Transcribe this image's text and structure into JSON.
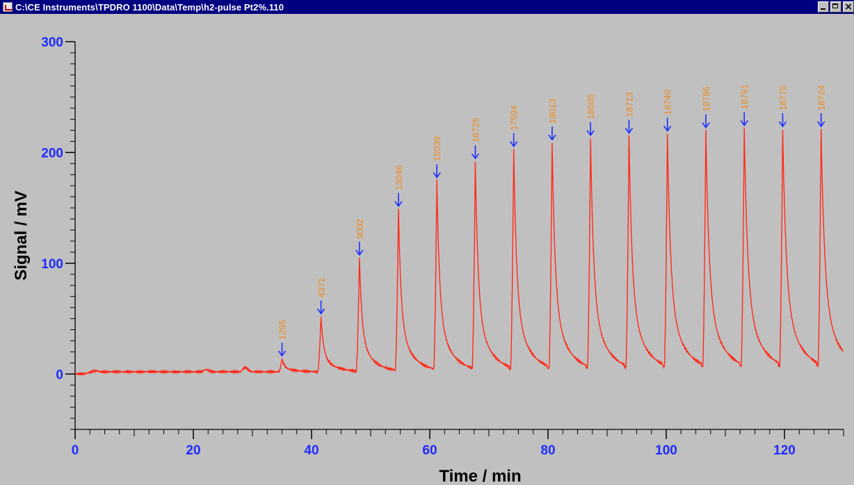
{
  "window": {
    "title": "C:\\CE Instruments\\TPDRO 1100\\Data\\Temp\\h2-pulse Pt2%.110",
    "icon": "instrument-chart-icon",
    "buttons": {
      "minimize": "minimize-icon",
      "maximize": "maximize-icon",
      "close_glyph": "×"
    }
  },
  "colors": {
    "background": "#c0c0c0",
    "titlebar": "#000080",
    "trace": "#ff2a1a",
    "arrow": "#1f2bff",
    "peak_label": "#f08a1c",
    "tick_label": "#1f2bff"
  },
  "chart_data": {
    "type": "line",
    "title": "",
    "xlabel": "Time / min",
    "ylabel": "Signal / mV",
    "xlim": [
      0,
      130
    ],
    "ylim": [
      -50,
      300
    ],
    "x_ticks": [
      0,
      20,
      40,
      60,
      80,
      100,
      120
    ],
    "y_ticks": [
      0,
      100,
      200,
      300
    ],
    "grid": false,
    "legend": "none",
    "baseline_mV": 2,
    "peaks": [
      {
        "x": 35.0,
        "y": 14,
        "label": "1295"
      },
      {
        "x": 41.6,
        "y": 52,
        "label": "4371"
      },
      {
        "x": 48.1,
        "y": 105,
        "label": "9002"
      },
      {
        "x": 54.7,
        "y": 149,
        "label": "13046"
      },
      {
        "x": 61.2,
        "y": 175,
        "label": "15039"
      },
      {
        "x": 67.7,
        "y": 192,
        "label": "16725"
      },
      {
        "x": 74.2,
        "y": 203,
        "label": "17594"
      },
      {
        "x": 80.7,
        "y": 209,
        "label": "18013"
      },
      {
        "x": 87.2,
        "y": 213,
        "label": "18505"
      },
      {
        "x": 93.7,
        "y": 215,
        "label": "18713"
      },
      {
        "x": 100.2,
        "y": 217,
        "label": "18740"
      },
      {
        "x": 106.7,
        "y": 220,
        "label": "18786"
      },
      {
        "x": 113.2,
        "y": 222,
        "label": "18791"
      },
      {
        "x": 119.7,
        "y": 221,
        "label": "18775"
      },
      {
        "x": 126.2,
        "y": 221,
        "label": "18724"
      }
    ],
    "minor_bumps": [
      {
        "x": 22.0,
        "y": 4
      },
      {
        "x": 28.6,
        "y": 6
      }
    ]
  }
}
